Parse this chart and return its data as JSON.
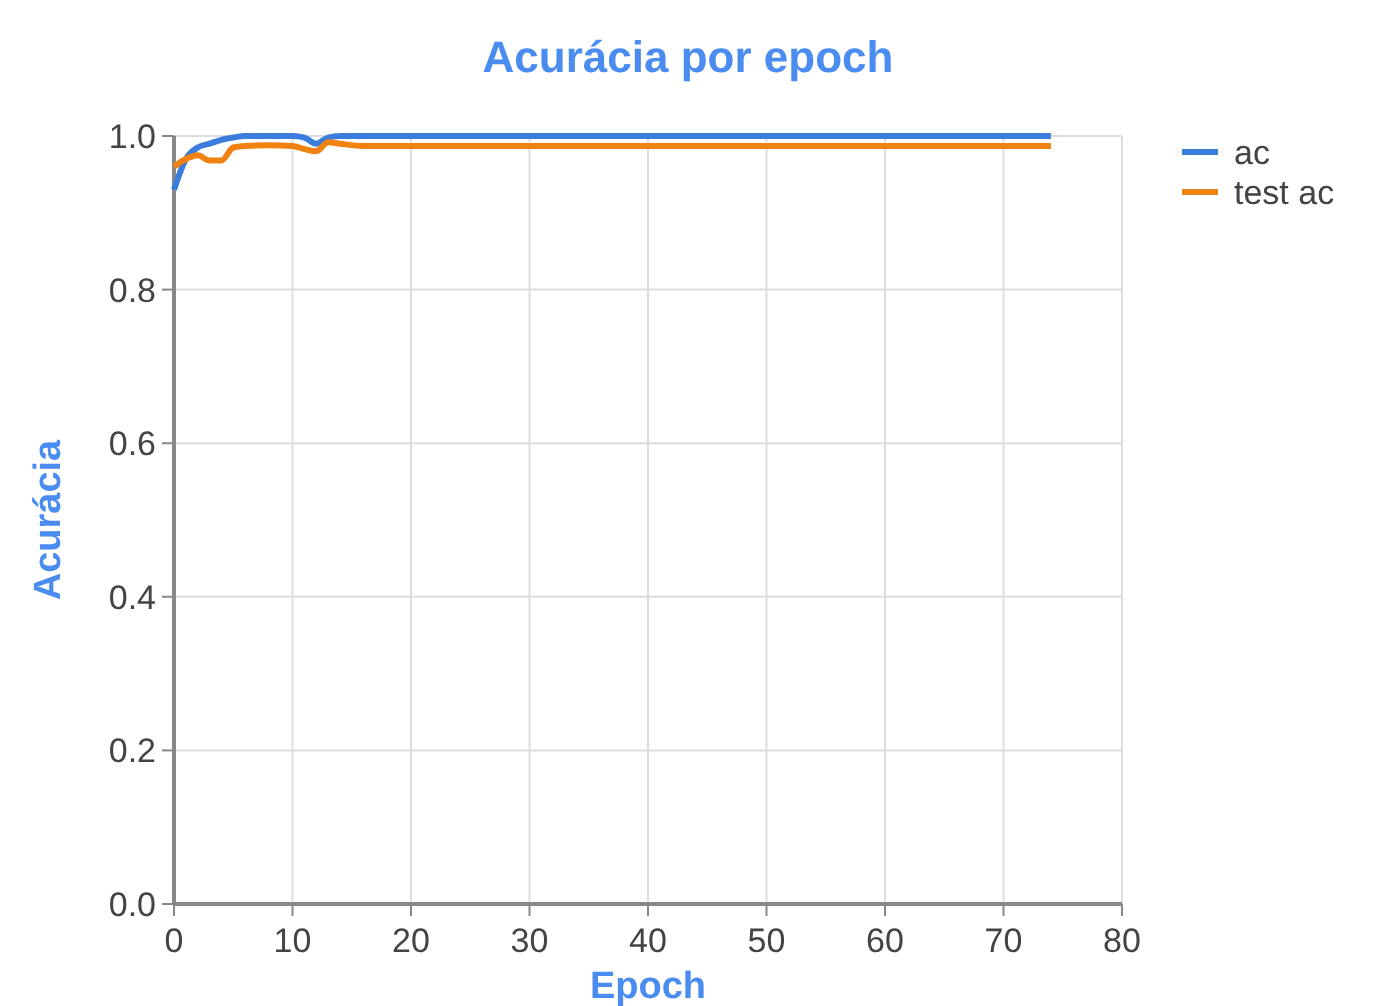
{
  "chart_data": {
    "type": "line",
    "title": "Acurácia por epoch",
    "xlabel": "Epoch",
    "ylabel": "Acurácia",
    "xlim": [
      0,
      80
    ],
    "xticks": [
      0,
      10,
      20,
      30,
      40,
      50,
      60,
      70,
      80
    ],
    "ylim": [
      0,
      1
    ],
    "yticks": [
      {
        "value": 0,
        "label": "0.0"
      },
      {
        "value": 0.2,
        "label": "0.2"
      },
      {
        "value": 0.4,
        "label": "0.4"
      },
      {
        "value": 0.6,
        "label": "0.6"
      },
      {
        "value": 0.8,
        "label": "0.8"
      },
      {
        "value": 1,
        "label": "1.0"
      }
    ],
    "grid": true,
    "legend": "right",
    "series": [
      {
        "name": "ac",
        "color": "#3b7ddd",
        "x": [
          0,
          1,
          2,
          3,
          4,
          5,
          6,
          8,
          10,
          11,
          12,
          13,
          14,
          16,
          20,
          74
        ],
        "values": [
          0.93,
          0.97,
          0.985,
          0.99,
          0.995,
          0.998,
          1.0,
          1.0,
          1.0,
          0.998,
          0.99,
          0.998,
          1.0,
          1.0,
          1.0,
          1.0
        ]
      },
      {
        "name": "test ac",
        "color": "#f0820f",
        "x": [
          0,
          1,
          2,
          3,
          4,
          5,
          6,
          8,
          10,
          11,
          12,
          13,
          14,
          16,
          20,
          74
        ],
        "values": [
          0.96,
          0.97,
          0.975,
          0.968,
          0.968,
          0.985,
          0.987,
          0.988,
          0.987,
          0.983,
          0.98,
          0.992,
          0.99,
          0.987,
          0.987,
          0.987
        ]
      }
    ]
  }
}
